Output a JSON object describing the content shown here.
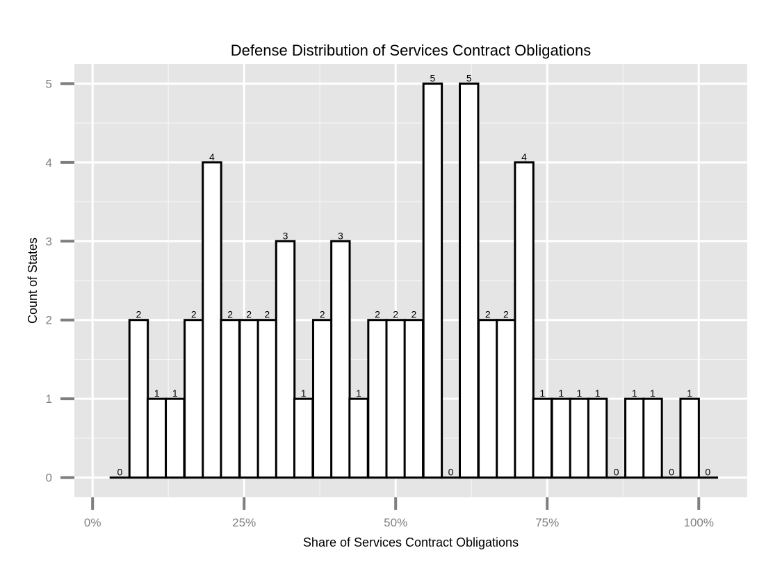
{
  "chart_data": {
    "type": "bar",
    "title": "Defense Distribution of Services Contract Obligations",
    "xlabel": "Share of Services Contract Obligations",
    "ylabel": "Count of States",
    "xlim": [
      -0.03,
      1.08
    ],
    "ylim": [
      -0.25,
      5.25
    ],
    "x_ticks": [
      {
        "value": 0.0,
        "label": "0%"
      },
      {
        "value": 0.25,
        "label": "25%"
      },
      {
        "value": 0.5,
        "label": "50%"
      },
      {
        "value": 0.75,
        "label": "75%"
      },
      {
        "value": 1.0,
        "label": "100%"
      }
    ],
    "y_ticks": [
      {
        "value": 0,
        "label": "0"
      },
      {
        "value": 1,
        "label": "1"
      },
      {
        "value": 2,
        "label": "2"
      },
      {
        "value": 3,
        "label": "3"
      },
      {
        "value": 4,
        "label": "4"
      },
      {
        "value": 5,
        "label": "5"
      }
    ],
    "grid": true,
    "bin_width": 0.0303,
    "bin_centers": [
      0.045,
      0.076,
      0.106,
      0.136,
      0.167,
      0.197,
      0.227,
      0.258,
      0.288,
      0.318,
      0.348,
      0.379,
      0.409,
      0.439,
      0.47,
      0.5,
      0.53,
      0.561,
      0.591,
      0.621,
      0.652,
      0.682,
      0.712,
      0.742,
      0.773,
      0.803,
      0.833,
      0.864,
      0.894,
      0.924,
      0.955,
      0.985,
      1.015
    ],
    "values": [
      0,
      2,
      1,
      1,
      2,
      4,
      2,
      2,
      2,
      3,
      1,
      2,
      3,
      1,
      2,
      2,
      2,
      5,
      0,
      5,
      2,
      2,
      4,
      1,
      1,
      1,
      1,
      0,
      1,
      1,
      0,
      1,
      0
    ],
    "bar_fill": "#ffffff",
    "bar_stroke": "#000000",
    "panel_background": "#e5e5e5",
    "grid_color": "#ffffff"
  }
}
